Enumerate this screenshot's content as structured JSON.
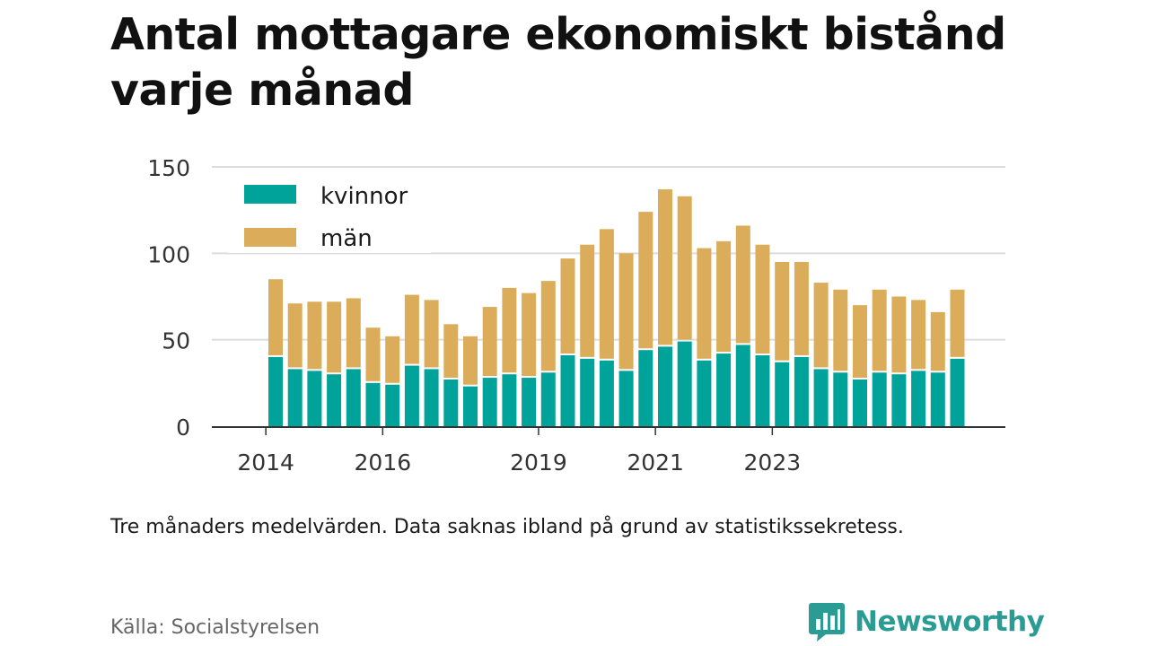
{
  "header": {
    "title": "Antal mottagare ekonomiskt bistånd varje månad"
  },
  "footer": {
    "note": "Tre månaders medelvärden. Data saknas ibland på grund av statistikssekretess.",
    "source": "Källa: Socialstyrelsen",
    "brand": "Newsworthy",
    "brand_icon": "bar-chart-speech-bubble-icon"
  },
  "colors": {
    "kvinnor": "#00a399",
    "man": "#dbad5a",
    "grid": "#dcdcdc",
    "axis": "#333333",
    "brand": "#2b9c94"
  },
  "chart_data": {
    "type": "bar",
    "stacked": true,
    "x_ticks": [
      "2014",
      "2016",
      "2019",
      "2021",
      "2023"
    ],
    "x_tick_positions": [
      0,
      6,
      14,
      20,
      26
    ],
    "y_ticks": [
      0,
      50,
      100,
      150
    ],
    "ylim": [
      0,
      150
    ],
    "legend_position": "top-left",
    "grid": true,
    "series": [
      {
        "name": "kvinnor",
        "values": [
          40,
          33,
          32,
          30,
          33,
          25,
          24,
          35,
          33,
          27,
          23,
          28,
          30,
          28,
          31,
          41,
          39,
          38,
          32,
          44,
          46,
          49,
          38,
          42,
          47,
          41,
          37,
          40,
          33,
          31,
          27,
          31,
          30,
          32,
          31,
          39
        ]
      },
      {
        "name": "män",
        "values": [
          45,
          38,
          40,
          42,
          41,
          32,
          28,
          41,
          40,
          32,
          29,
          41,
          50,
          49,
          53,
          56,
          66,
          76,
          68,
          80,
          91,
          84,
          65,
          65,
          69,
          64,
          58,
          55,
          50,
          48,
          43,
          48,
          45,
          41,
          35,
          40
        ]
      }
    ]
  }
}
